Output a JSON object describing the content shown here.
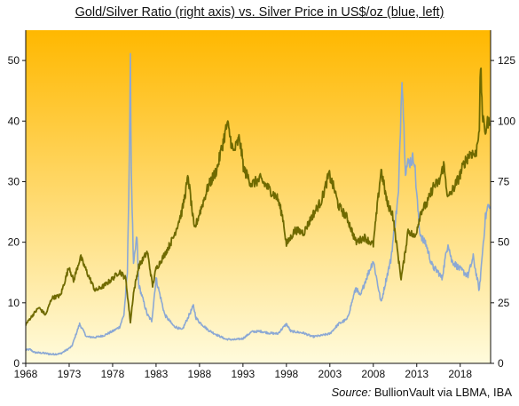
{
  "chart_data": {
    "type": "line",
    "title": "Gold/Silver Ratio (right axis) vs. Silver Price in US$/oz (blue, left)",
    "source_label": "Source:",
    "source_text": "BullionVault via LBMA, IBA",
    "x_range": [
      1968,
      2021.5
    ],
    "x_ticks": [
      "1968",
      "1973",
      "1978",
      "1983",
      "1988",
      "1993",
      "1998",
      "2003",
      "2008",
      "2013",
      "2018"
    ],
    "y_left": {
      "range": [
        0,
        55
      ],
      "ticks": [
        "0",
        "10",
        "20",
        "30",
        "40",
        "50"
      ]
    },
    "y_right": {
      "range": [
        0,
        137.5
      ],
      "ticks": [
        "0",
        "25",
        "50",
        "75",
        "100",
        "125"
      ]
    },
    "grid": false,
    "legend": "none",
    "background_gradient": [
      "#FFB800",
      "#FFFBDC"
    ],
    "series": [
      {
        "axis": "left",
        "color": "#8BA8D4",
        "points": [
          [
            1968.0,
            2.2
          ],
          [
            1968.5,
            2.3
          ],
          [
            1969,
            1.8
          ],
          [
            1970,
            1.7
          ],
          [
            1971,
            1.5
          ],
          [
            1972,
            1.6
          ],
          [
            1972.8,
            2.3
          ],
          [
            1973.3,
            2.8
          ],
          [
            1974.2,
            6.5
          ],
          [
            1975,
            4.4
          ],
          [
            1976,
            4.3
          ],
          [
            1977,
            4.6
          ],
          [
            1978,
            5.3
          ],
          [
            1978.8,
            6.0
          ],
          [
            1979.3,
            8.0
          ],
          [
            1979.7,
            15.0
          ],
          [
            1979.95,
            37.0
          ],
          [
            1980.05,
            49.5
          ],
          [
            1980.15,
            32.0
          ],
          [
            1980.4,
            16.0
          ],
          [
            1980.8,
            21.0
          ],
          [
            1981,
            13.0
          ],
          [
            1982,
            8.0
          ],
          [
            1982.5,
            7.0
          ],
          [
            1983,
            14.0
          ],
          [
            1983.5,
            11.0
          ],
          [
            1984,
            8.0
          ],
          [
            1985,
            6.2
          ],
          [
            1986,
            5.5
          ],
          [
            1987.3,
            9.5
          ],
          [
            1987.6,
            7.5
          ],
          [
            1988,
            6.8
          ],
          [
            1989,
            5.5
          ],
          [
            1990,
            4.7
          ],
          [
            1991,
            4.0
          ],
          [
            1992,
            3.9
          ],
          [
            1993,
            4.1
          ],
          [
            1994,
            5.2
          ],
          [
            1995,
            5.3
          ],
          [
            1996,
            5.0
          ],
          [
            1997,
            4.9
          ],
          [
            1998,
            6.5
          ],
          [
            1998.5,
            5.3
          ],
          [
            1999,
            5.2
          ],
          [
            2000,
            5.0
          ],
          [
            2001,
            4.4
          ],
          [
            2002,
            4.6
          ],
          [
            2003,
            4.9
          ],
          [
            2004,
            6.5
          ],
          [
            2005,
            7.3
          ],
          [
            2006,
            12.5
          ],
          [
            2006.5,
            11.0
          ],
          [
            2007,
            13.3
          ],
          [
            2008,
            17.0
          ],
          [
            2008.9,
            10.0
          ],
          [
            2009.5,
            14.0
          ],
          [
            2010,
            17.0
          ],
          [
            2010.9,
            28.0
          ],
          [
            2011.3,
            48.0
          ],
          [
            2011.7,
            32.0
          ],
          [
            2012,
            33.0
          ],
          [
            2012.7,
            34.0
          ],
          [
            2013.3,
            22.0
          ],
          [
            2013.8,
            20.0
          ],
          [
            2014,
            20.0
          ],
          [
            2014.8,
            16.0
          ],
          [
            2015.5,
            15.0
          ],
          [
            2015.9,
            14.0
          ],
          [
            2016.6,
            20.0
          ],
          [
            2017,
            17.0
          ],
          [
            2018,
            15.5
          ],
          [
            2018.9,
            14.5
          ],
          [
            2019.5,
            17.5
          ],
          [
            2020.2,
            12.0
          ],
          [
            2020.6,
            19.0
          ],
          [
            2020.9,
            24.0
          ],
          [
            2021.2,
            26.0
          ],
          [
            2021.4,
            25.5
          ]
        ]
      },
      {
        "axis": "right",
        "color": "#6F6A00",
        "points": [
          [
            1968.0,
            16.0
          ],
          [
            1968.6,
            19.0
          ],
          [
            1969.5,
            23.0
          ],
          [
            1970.3,
            20.0
          ],
          [
            1971,
            27.0
          ],
          [
            1972,
            28.0
          ],
          [
            1973,
            40.0
          ],
          [
            1973.5,
            34.0
          ],
          [
            1974.3,
            44.0
          ],
          [
            1975,
            38.0
          ],
          [
            1976,
            30.0
          ],
          [
            1977,
            32.0
          ],
          [
            1978,
            35.0
          ],
          [
            1978.8,
            38.0
          ],
          [
            1979.5,
            35.0
          ],
          [
            1980.05,
            17.0
          ],
          [
            1980.4,
            29.0
          ],
          [
            1981,
            40.0
          ],
          [
            1982,
            46.0
          ],
          [
            1982.6,
            32.0
          ],
          [
            1983,
            39.0
          ],
          [
            1984,
            45.0
          ],
          [
            1985,
            52.0
          ],
          [
            1986,
            63.0
          ],
          [
            1986.7,
            77.0
          ],
          [
            1987.4,
            55.0
          ],
          [
            1988,
            62.0
          ],
          [
            1989,
            73.0
          ],
          [
            1990,
            80.0
          ],
          [
            1990.5,
            88.0
          ],
          [
            1991.2,
            99.0
          ],
          [
            1991.9,
            87.0
          ],
          [
            1992.6,
            93.0
          ],
          [
            1993.1,
            80.0
          ],
          [
            1994,
            74.0
          ],
          [
            1995,
            76.0
          ],
          [
            1996,
            72.0
          ],
          [
            1997,
            68.0
          ],
          [
            1997.6,
            60.0
          ],
          [
            1998,
            49.0
          ],
          [
            1999,
            55.0
          ],
          [
            2000,
            54.0
          ],
          [
            2001,
            61.0
          ],
          [
            2002,
            67.0
          ],
          [
            2002.9,
            78.0
          ],
          [
            2003.5,
            72.0
          ],
          [
            2004,
            65.0
          ],
          [
            2005,
            60.0
          ],
          [
            2006,
            50.0
          ],
          [
            2007,
            52.0
          ],
          [
            2008,
            49.0
          ],
          [
            2008.9,
            80.0
          ],
          [
            2009.6,
            66.0
          ],
          [
            2010.2,
            62.0
          ],
          [
            2011.2,
            35.0
          ],
          [
            2011.6,
            44.0
          ],
          [
            2012,
            55.0
          ],
          [
            2012.8,
            52.0
          ],
          [
            2013.5,
            63.0
          ],
          [
            2014.2,
            66.0
          ],
          [
            2014.9,
            73.0
          ],
          [
            2015.6,
            75.0
          ],
          [
            2016.1,
            82.0
          ],
          [
            2016.6,
            68.0
          ],
          [
            2017.2,
            72.0
          ],
          [
            2017.9,
            77.0
          ],
          [
            2018.5,
            83.0
          ],
          [
            2019.2,
            87.0
          ],
          [
            2019.8,
            86.0
          ],
          [
            2020.2,
            98.0
          ],
          [
            2020.35,
            123.0
          ],
          [
            2020.6,
            100.0
          ],
          [
            2020.9,
            96.0
          ],
          [
            2021.2,
            100.0
          ],
          [
            2021.4,
            98.0
          ]
        ]
      }
    ]
  }
}
